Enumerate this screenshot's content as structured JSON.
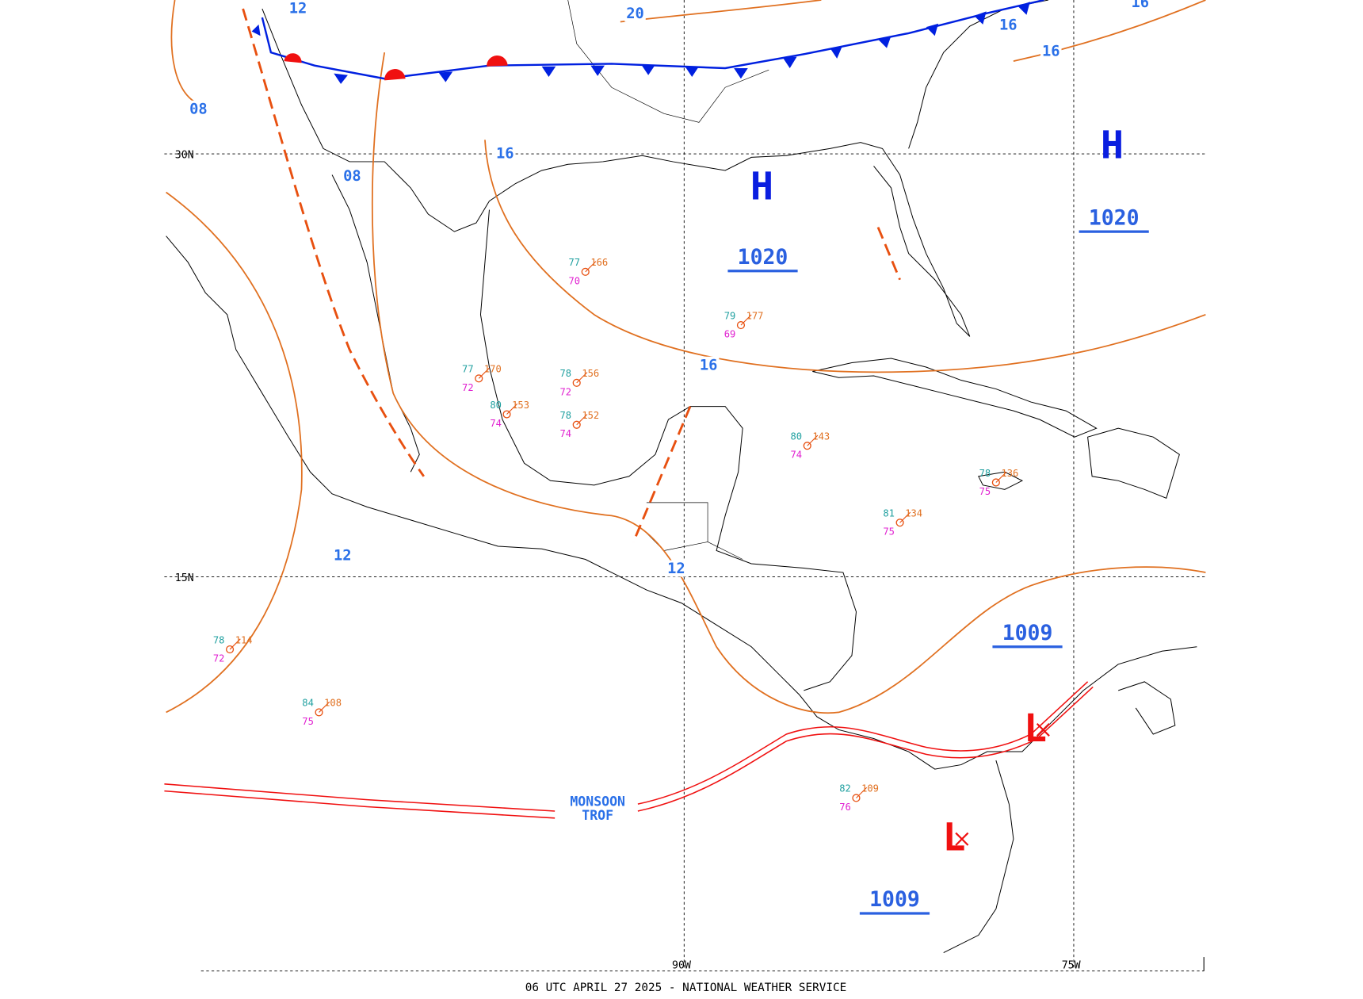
{
  "footer": "06 UTC APRIL 27 2025 - NATIONAL WEATHER SERVICE",
  "grid_labels": [
    "30N",
    "15N",
    "90W",
    "75W"
  ],
  "highs": [
    {
      "letter": "H",
      "pressure": "1020"
    },
    {
      "letter": "H",
      "pressure": "1020"
    }
  ],
  "lows": [
    {
      "letter": "L",
      "pressure": "1009"
    },
    {
      "letter": "L",
      "pressure": "1009"
    }
  ],
  "isobar_labels": [
    "12",
    "20",
    "16",
    "16",
    "16",
    "08",
    "08",
    "16",
    "16",
    "12",
    "12"
  ],
  "monsoon_trough": [
    "MONSOON",
    "TROF"
  ],
  "stations": [
    {
      "temp": "78",
      "dew": "72",
      "pressure": "156"
    },
    {
      "temp": "77",
      "dew": "72",
      "pressure": "170"
    },
    {
      "temp": "79",
      "dew": "69",
      "pressure": "177"
    },
    {
      "temp": "80",
      "dew": "74",
      "pressure": "143"
    },
    {
      "temp": "81",
      "dew": "75",
      "pressure": "134"
    },
    {
      "temp": "78",
      "dew": "75",
      "pressure": "136"
    },
    {
      "temp": "78",
      "dew": "72",
      "pressure": "114"
    },
    {
      "temp": "84",
      "dew": "75",
      "pressure": "108"
    },
    {
      "temp": "82",
      "dew": "76",
      "pressure": "109"
    },
    {
      "temp": "80",
      "dew": "74",
      "pressure": "153"
    },
    {
      "temp": "77",
      "dew": "70",
      "pressure": "166"
    },
    {
      "temp": "78",
      "dew": "74",
      "pressure": "152"
    }
  ]
}
